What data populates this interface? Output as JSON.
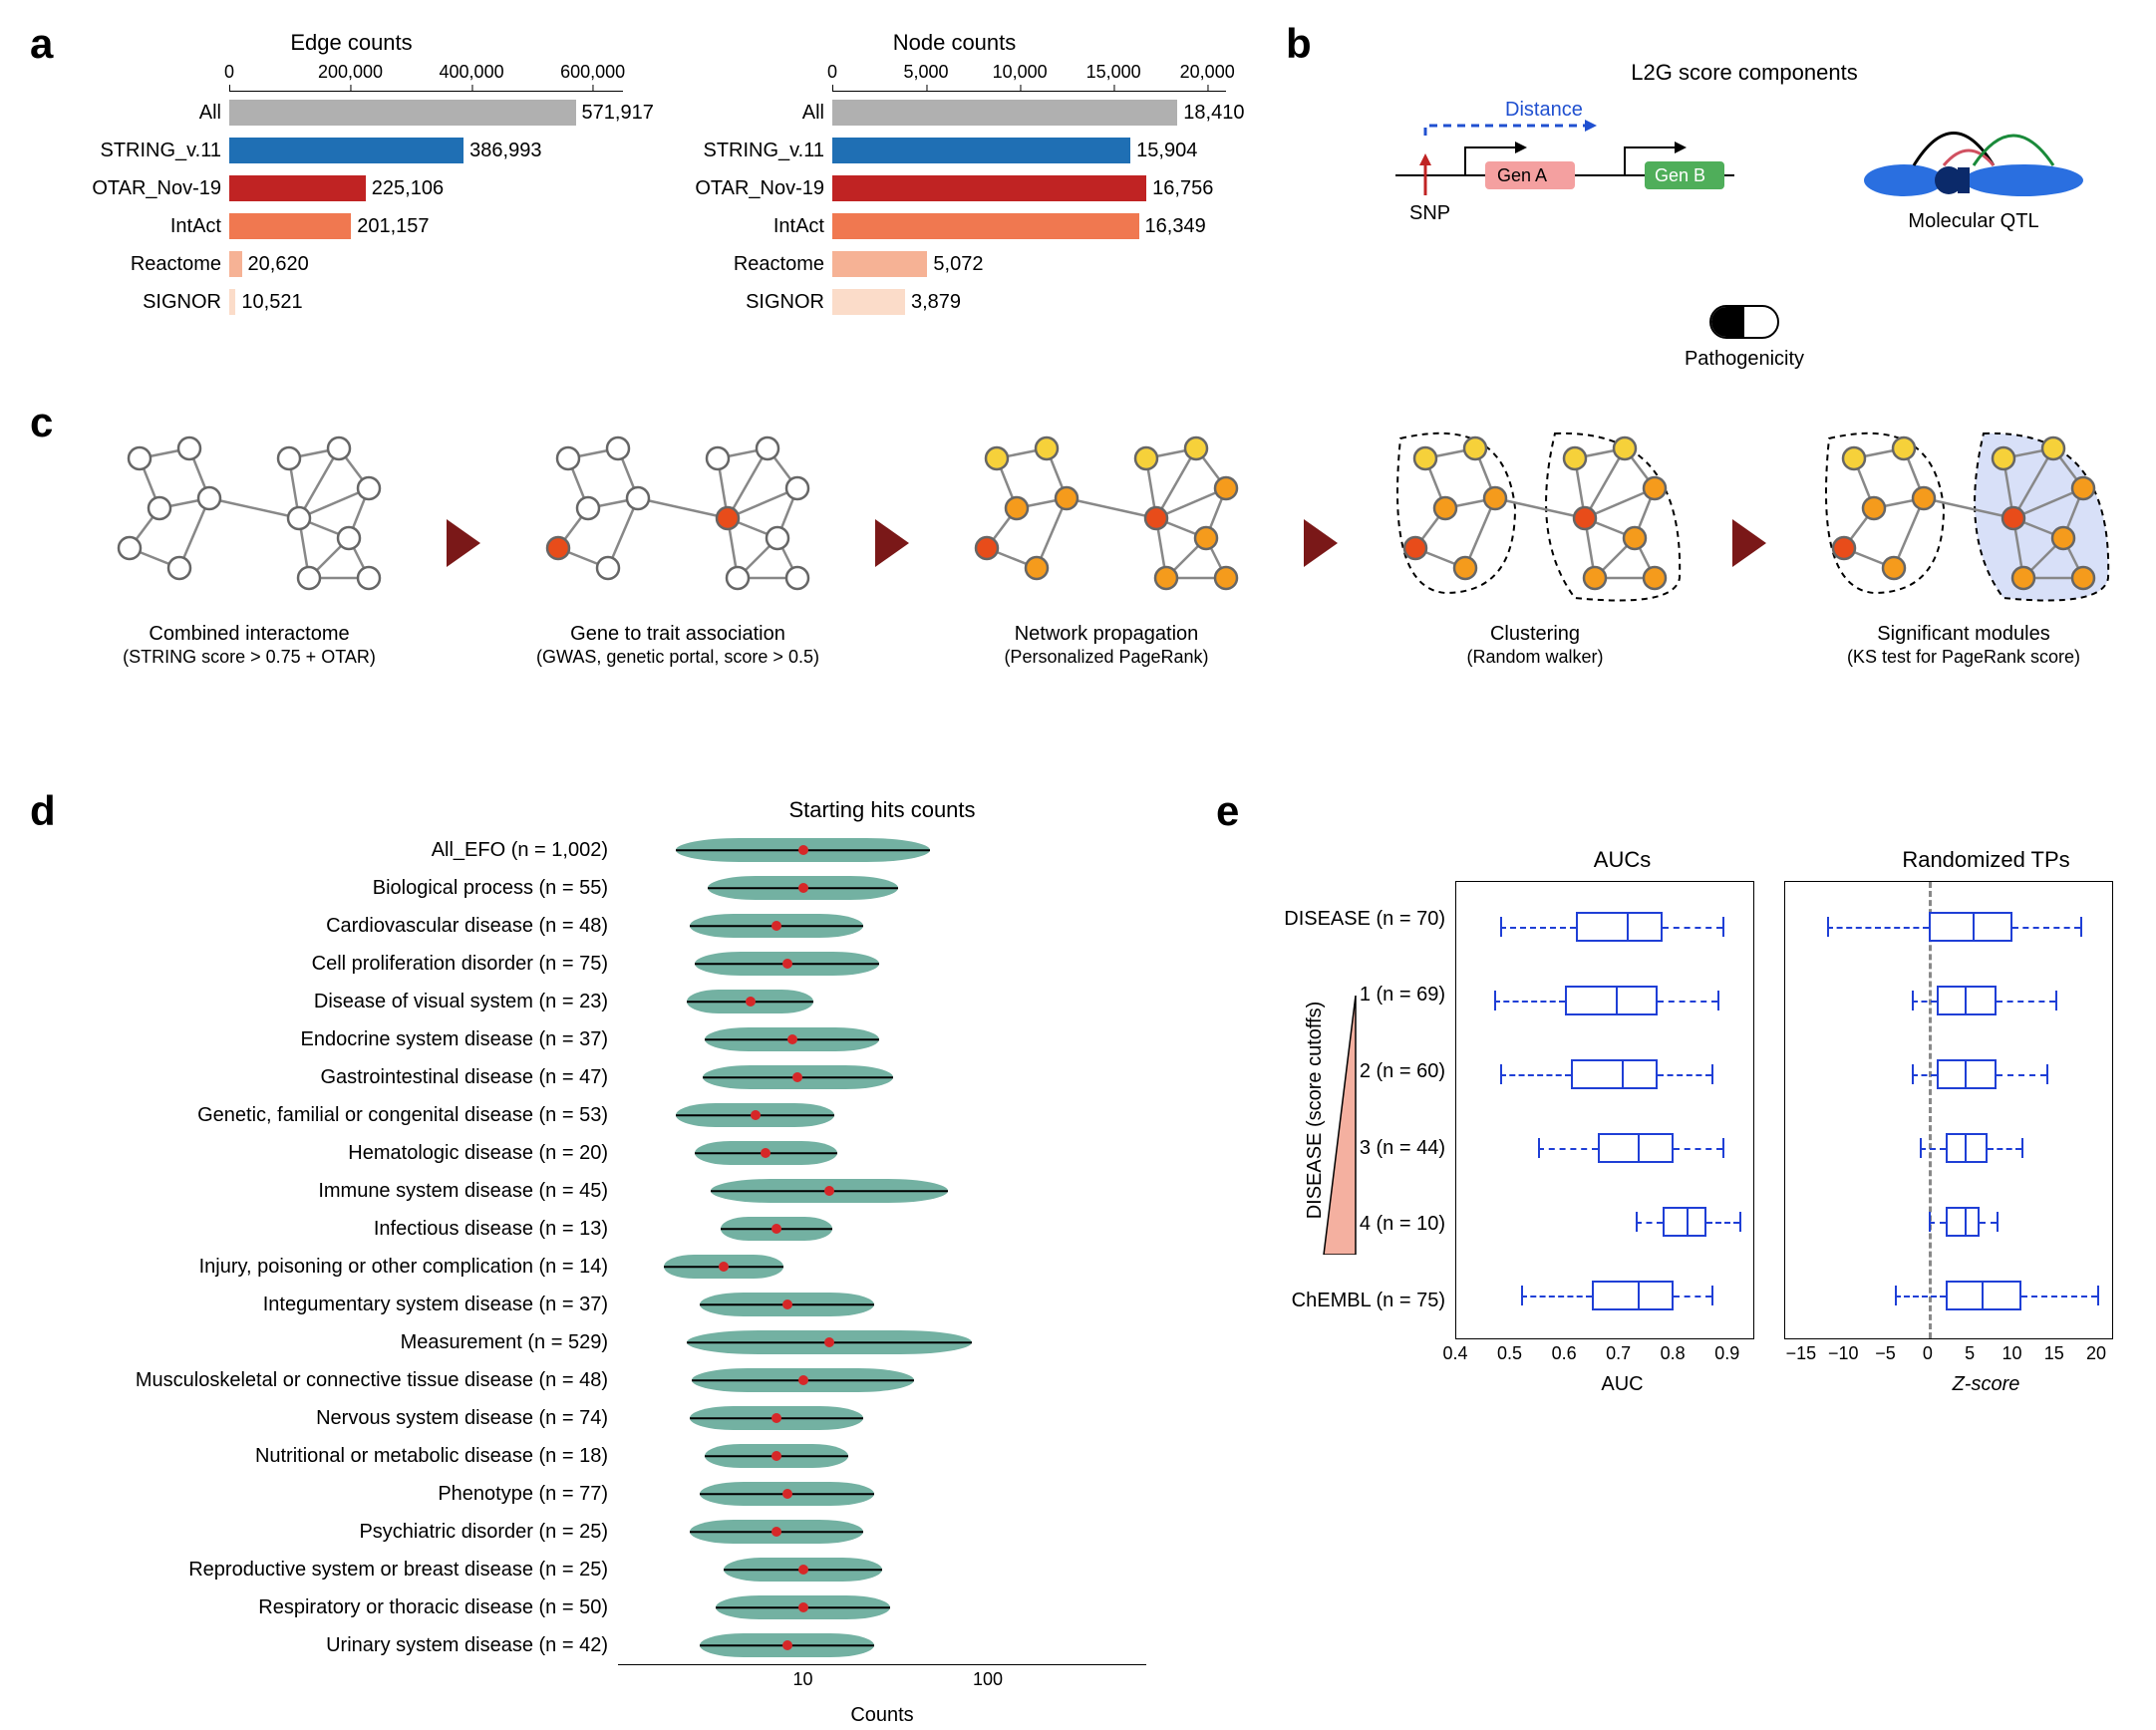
{
  "panel_labels": {
    "a": "a",
    "b": "b",
    "c": "c",
    "d": "d",
    "e": "e"
  },
  "panel_a": {
    "edge_chart": {
      "title": "Edge counts",
      "xmax": 650000,
      "ticks": [
        0,
        200000,
        400000,
        600000
      ],
      "tick_labels": [
        "0",
        "200,000",
        "400,000",
        "600,000"
      ],
      "bars": [
        {
          "label": "All",
          "value": 571917,
          "text": "571,917",
          "color": "#b0b0b0"
        },
        {
          "label": "STRING_v.11",
          "value": 386993,
          "text": "386,993",
          "color": "#1f6fb4"
        },
        {
          "label": "OTAR_Nov-19",
          "value": 225106,
          "text": "225,106",
          "color": "#c02323"
        },
        {
          "label": "IntAct",
          "value": 201157,
          "text": "201,157",
          "color": "#f07850"
        },
        {
          "label": "Reactome",
          "value": 20620,
          "text": "20,620",
          "color": "#f6b295"
        },
        {
          "label": "SIGNOR",
          "value": 10521,
          "text": "10,521",
          "color": "#fbdcc9"
        }
      ]
    },
    "node_chart": {
      "title": "Node counts",
      "xmax": 21000,
      "ticks": [
        0,
        5000,
        10000,
        15000,
        20000
      ],
      "tick_labels": [
        "0",
        "5,000",
        "10,000",
        "15,000",
        "20,000"
      ],
      "bars": [
        {
          "label": "All",
          "value": 18410,
          "text": "18,410",
          "color": "#b0b0b0"
        },
        {
          "label": "STRING_v.11",
          "value": 15904,
          "text": "15,904",
          "color": "#1f6fb4"
        },
        {
          "label": "OTAR_Nov-19",
          "value": 16756,
          "text": "16,756",
          "color": "#c02323"
        },
        {
          "label": "IntAct",
          "value": 16349,
          "text": "16,349",
          "color": "#f07850"
        },
        {
          "label": "Reactome",
          "value": 5072,
          "text": "5,072",
          "color": "#f6b295"
        },
        {
          "label": "SIGNOR",
          "value": 3879,
          "text": "3,879",
          "color": "#fbdcc9"
        }
      ]
    }
  },
  "panel_b": {
    "title": "L2G score components",
    "distance_label": "Distance",
    "snp_label": "SNP",
    "genA": "Gen A",
    "genB": "Gen B",
    "qtl_label": "Molecular QTL",
    "pathog_label": "Pathogenicity",
    "genA_color": "#f4a0a0",
    "genB_color": "#4fae5a",
    "distance_color": "#2050d0",
    "chrom_color": "#2a6fe0"
  },
  "panel_c": {
    "arrow_color": "#7a1818",
    "steps": [
      {
        "title": "Combined interactome",
        "sub": "(STRING score > 0.75 + OTAR)"
      },
      {
        "title": "Gene to trait association",
        "sub": "(GWAS, genetic portal, score > 0.5)"
      },
      {
        "title": "Network propagation",
        "sub": "(Personalized PageRank)"
      },
      {
        "title": "Clustering",
        "sub": "(Random walker)"
      },
      {
        "title": "Significant modules",
        "sub": "(KS test for PageRank score)"
      }
    ]
  },
  "panel_d": {
    "title": "Starting hits counts",
    "xlabel": "Counts",
    "xticks": [
      "10",
      "100"
    ],
    "xtick_pos": [
      0.35,
      0.7
    ],
    "violin_color": "#5aa392",
    "median_color": "#d62728",
    "rows": [
      {
        "label": "All_EFO (n = 1,002)",
        "median": 0.35,
        "w": 0.8
      },
      {
        "label": "Biological process (n = 55)",
        "median": 0.35,
        "w": 0.6
      },
      {
        "label": "Cardiovascular disease (n = 48)",
        "median": 0.3,
        "w": 0.55
      },
      {
        "label": "Cell proliferation disorder (n = 75)",
        "median": 0.32,
        "w": 0.58
      },
      {
        "label": "Disease of visual system (n = 23)",
        "median": 0.25,
        "w": 0.4
      },
      {
        "label": "Endocrine system disease (n = 37)",
        "median": 0.33,
        "w": 0.55
      },
      {
        "label": "Gastrointestinal disease (n = 47)",
        "median": 0.34,
        "w": 0.6
      },
      {
        "label": "Genetic, familial or congenital disease (n = 53)",
        "median": 0.26,
        "w": 0.5
      },
      {
        "label": "Hematologic disease (n = 20)",
        "median": 0.28,
        "w": 0.45
      },
      {
        "label": "Immune system disease (n = 45)",
        "median": 0.4,
        "w": 0.75
      },
      {
        "label": "Infectious disease (n = 13)",
        "median": 0.3,
        "w": 0.35
      },
      {
        "label": "Injury, poisoning or other complication (n = 14)",
        "median": 0.2,
        "w": 0.38
      },
      {
        "label": "Integumentary system disease (n = 37)",
        "median": 0.32,
        "w": 0.55
      },
      {
        "label": "Measurement (n = 529)",
        "median": 0.4,
        "w": 0.9
      },
      {
        "label": "Musculoskeletal or connective tissue disease (n = 48)",
        "median": 0.35,
        "w": 0.7
      },
      {
        "label": "Nervous system disease (n = 74)",
        "median": 0.3,
        "w": 0.55
      },
      {
        "label": "Nutritional or metabolic disease (n = 18)",
        "median": 0.3,
        "w": 0.45
      },
      {
        "label": "Phenotype (n = 77)",
        "median": 0.32,
        "w": 0.55
      },
      {
        "label": "Psychiatric disorder (n = 25)",
        "median": 0.3,
        "w": 0.55
      },
      {
        "label": "Reproductive system or breast disease (n = 25)",
        "median": 0.35,
        "w": 0.5
      },
      {
        "label": "Respiratory or thoracic disease (n = 50)",
        "median": 0.35,
        "w": 0.55
      },
      {
        "label": "Urinary system disease (n = 42)",
        "median": 0.32,
        "w": 0.55
      }
    ]
  },
  "panel_e": {
    "left_title": "AUCs",
    "right_title": "Randomized TPs",
    "ylabel": "DISEASE (score cutoffs)",
    "xlabel_left": "AUC",
    "xlabel_right": "Z-score",
    "box_color": "#1f3fd6",
    "zero_color": "#888888",
    "auc_range": [
      0.4,
      0.95
    ],
    "auc_ticks": [
      0.4,
      0.5,
      0.6,
      0.7,
      0.8,
      0.9
    ],
    "auc_tick_labels": [
      "0.4",
      "0.5",
      "0.6",
      "0.7",
      "0.8",
      "0.9"
    ],
    "z_range": [
      -17,
      22
    ],
    "z_ticks": [
      -15,
      -10,
      -5,
      0,
      5,
      10,
      15,
      20
    ],
    "z_tick_labels": [
      "−15",
      "−10",
      "−5",
      "0",
      "5",
      "10",
      "15",
      "20"
    ],
    "rows": [
      {
        "label": "DISEASE (n = 70)",
        "auc": {
          "lo": 0.48,
          "q1": 0.62,
          "med": 0.71,
          "q3": 0.78,
          "hi": 0.89
        },
        "z": {
          "lo": -12,
          "q1": 0,
          "med": 5,
          "q3": 10,
          "hi": 18
        }
      },
      {
        "label": "1 (n = 69)",
        "auc": {
          "lo": 0.47,
          "q1": 0.6,
          "med": 0.69,
          "q3": 0.77,
          "hi": 0.88
        },
        "z": {
          "lo": -2,
          "q1": 1,
          "med": 4,
          "q3": 8,
          "hi": 15
        }
      },
      {
        "label": "2 (n = 60)",
        "auc": {
          "lo": 0.48,
          "q1": 0.61,
          "med": 0.7,
          "q3": 0.77,
          "hi": 0.87
        },
        "z": {
          "lo": -2,
          "q1": 1,
          "med": 4,
          "q3": 8,
          "hi": 14
        }
      },
      {
        "label": "3 (n = 44)",
        "auc": {
          "lo": 0.55,
          "q1": 0.66,
          "med": 0.73,
          "q3": 0.8,
          "hi": 0.89
        },
        "z": {
          "lo": -1,
          "q1": 2,
          "med": 4,
          "q3": 7,
          "hi": 11
        }
      },
      {
        "label": "4 (n = 10)",
        "auc": {
          "lo": 0.73,
          "q1": 0.78,
          "med": 0.82,
          "q3": 0.86,
          "hi": 0.92
        },
        "z": {
          "lo": 0,
          "q1": 2,
          "med": 4,
          "q3": 6,
          "hi": 8
        }
      },
      {
        "label": "ChEMBL (n = 75)",
        "auc": {
          "lo": 0.52,
          "q1": 0.65,
          "med": 0.73,
          "q3": 0.8,
          "hi": 0.87
        },
        "z": {
          "lo": -4,
          "q1": 2,
          "med": 6,
          "q3": 11,
          "hi": 20
        }
      }
    ]
  }
}
